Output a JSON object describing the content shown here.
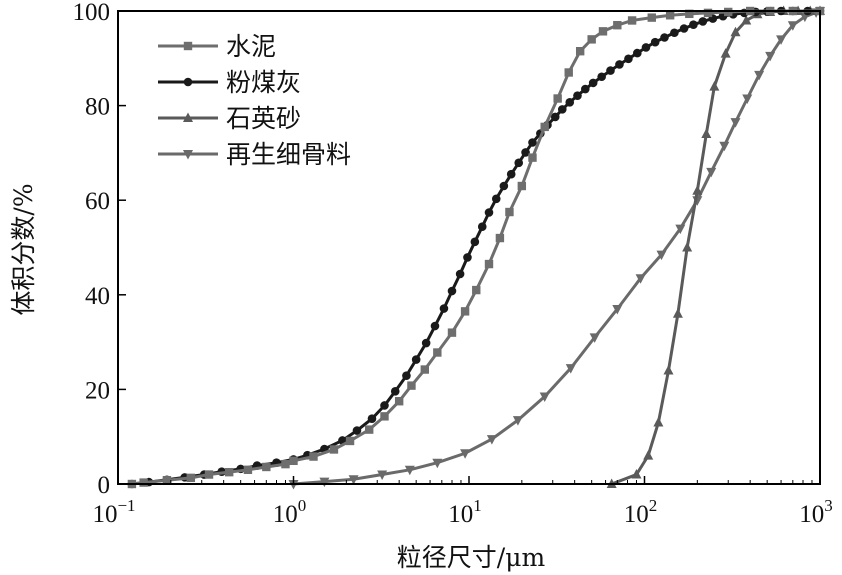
{
  "chart_data": {
    "type": "line",
    "xlabel": "粒径尺寸/μm",
    "ylabel": "体积分数/%",
    "xscale": "log",
    "xlim": [
      0.1,
      1000
    ],
    "ylim": [
      0,
      100
    ],
    "x_ticks": [
      {
        "base": "10",
        "exp": "−1"
      },
      {
        "base": "10",
        "exp": "0"
      },
      {
        "base": "10",
        "exp": "1"
      },
      {
        "base": "10",
        "exp": "2"
      },
      {
        "base": "10",
        "exp": "3"
      }
    ],
    "y_ticks": [
      "0",
      "20",
      "40",
      "60",
      "80",
      "100"
    ],
    "legend_position": "top-left",
    "grid": false,
    "series": [
      {
        "name": "水泥",
        "marker": "square",
        "color": "#6e6e6e",
        "x": [
          0.12,
          0.14,
          0.19,
          0.26,
          0.33,
          0.43,
          0.55,
          0.7,
          0.9,
          1.0,
          1.3,
          1.7,
          2.1,
          2.7,
          3.3,
          4.0,
          4.7,
          5.6,
          6.6,
          8.0,
          9.5,
          11,
          13,
          15,
          17,
          20,
          23,
          27,
          32,
          37,
          43,
          50,
          58,
          70,
          85,
          110,
          140,
          180,
          230,
          300,
          400,
          520,
          700,
          1000
        ],
        "y": [
          0,
          0.3,
          0.8,
          1.3,
          2,
          2.5,
          3,
          3.6,
          4.2,
          4.9,
          5.8,
          7.3,
          9.1,
          11.5,
          14.3,
          17.5,
          20.8,
          24.2,
          27.8,
          32,
          36.5,
          41,
          46.5,
          52,
          57.5,
          63,
          69,
          75.5,
          81.5,
          87,
          91.5,
          94,
          95.7,
          97,
          98,
          98.6,
          99.1,
          99.4,
          99.6,
          99.8,
          100,
          100,
          100,
          100
        ]
      },
      {
        "name": "粉煤灰",
        "marker": "circle",
        "color": "#1a1a1a",
        "x": [
          0.12,
          0.15,
          0.19,
          0.24,
          0.31,
          0.39,
          0.5,
          0.62,
          0.8,
          1.0,
          1.2,
          1.5,
          1.9,
          2.3,
          2.8,
          3.3,
          3.8,
          4.4,
          5.0,
          5.7,
          6.4,
          7.2,
          8.0,
          8.9,
          9.8,
          10.8,
          11.9,
          13,
          14.3,
          15.8,
          17.4,
          19.2,
          21,
          23,
          25.5,
          28,
          31,
          34,
          37.5,
          41.5,
          46,
          51,
          57,
          64,
          72,
          81,
          91,
          102,
          115,
          130,
          148,
          168,
          190,
          215,
          245,
          280,
          320,
          370,
          430,
          500,
          600,
          700,
          850,
          1000
        ],
        "y": [
          0,
          0.4,
          0.9,
          1.4,
          2.0,
          2.6,
          3.2,
          3.9,
          4.5,
          5.2,
          6.1,
          7.4,
          9.2,
          11.3,
          13.8,
          16.6,
          19.6,
          22.9,
          26.3,
          29.8,
          33.4,
          37.1,
          40.8,
          44.4,
          47.9,
          51.2,
          54.4,
          57.4,
          60.3,
          63,
          65.5,
          67.9,
          70.1,
          72.2,
          74.1,
          75.9,
          77.6,
          79.2,
          80.7,
          82.1,
          83.5,
          84.8,
          86.1,
          87.4,
          88.7,
          89.9,
          91.1,
          92.3,
          93.4,
          94.4,
          95.4,
          96.3,
          97.1,
          97.8,
          98.4,
          98.9,
          99.3,
          99.6,
          99.8,
          99.9,
          100,
          100,
          100,
          100
        ]
      },
      {
        "name": "石英砂",
        "marker": "triangle-up",
        "color": "#5a5a5a",
        "x": [
          65,
          90,
          105,
          120,
          137,
          155,
          175,
          200,
          225,
          250,
          290,
          330,
          380,
          440,
          520,
          620,
          750,
          880,
          1000
        ],
        "y": [
          0,
          2,
          6,
          13,
          24,
          36,
          50,
          62,
          74,
          84,
          91,
          95.5,
          98,
          99.3,
          99.8,
          100,
          100,
          100,
          100
        ]
      },
      {
        "name": "再生细骨料",
        "marker": "triangle-down",
        "color": "#6a6a6a",
        "x": [
          1.0,
          1.5,
          2.2,
          3.2,
          4.6,
          6.6,
          9.5,
          13.5,
          19,
          27,
          38,
          52,
          70,
          95,
          125,
          160,
          200,
          240,
          285,
          330,
          385,
          450,
          520,
          600,
          700,
          820,
          950,
          1000
        ],
        "y": [
          0,
          0.5,
          1,
          2,
          3,
          4.5,
          6.5,
          9.5,
          13.5,
          18.5,
          24.5,
          31,
          37,
          43.5,
          48.5,
          54,
          60,
          66,
          71.5,
          76.5,
          81.5,
          86.5,
          90.5,
          94,
          97,
          98.8,
          99.7,
          100
        ]
      }
    ]
  }
}
